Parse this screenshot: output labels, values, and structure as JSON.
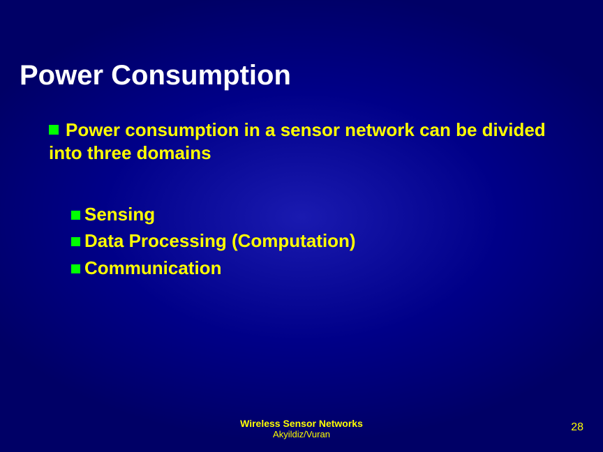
{
  "background": {
    "base_color": "#000088",
    "gradient_center": "#1a1ab0",
    "gradient_edge": "#000066"
  },
  "title": {
    "text": "Power Consumption",
    "color": "#ffffff",
    "fontsize": 40,
    "fontweight": "bold"
  },
  "bullet_style": {
    "shape": "square",
    "color": "#00ff00",
    "size_main": 14,
    "size_sub": 13
  },
  "main_bullet": {
    "text": "Power consumption in a sensor network can be divided into three domains",
    "color": "#ffff00",
    "fontsize": 26,
    "fontweight": "bold"
  },
  "sub_bullets": {
    "color": "#ffff00",
    "fontsize": 26,
    "fontweight": "bold",
    "items": [
      "Sensing",
      "Data Processing (Computation)",
      "Communication"
    ]
  },
  "footer": {
    "line1": "Wireless Sensor Networks",
    "line2": "Akyildiz/Vuran",
    "color": "#ffff00",
    "fontsize_line1": 14,
    "fontsize_line2": 13
  },
  "page_number": {
    "value": "28",
    "color": "#ffff00",
    "fontsize": 16
  }
}
